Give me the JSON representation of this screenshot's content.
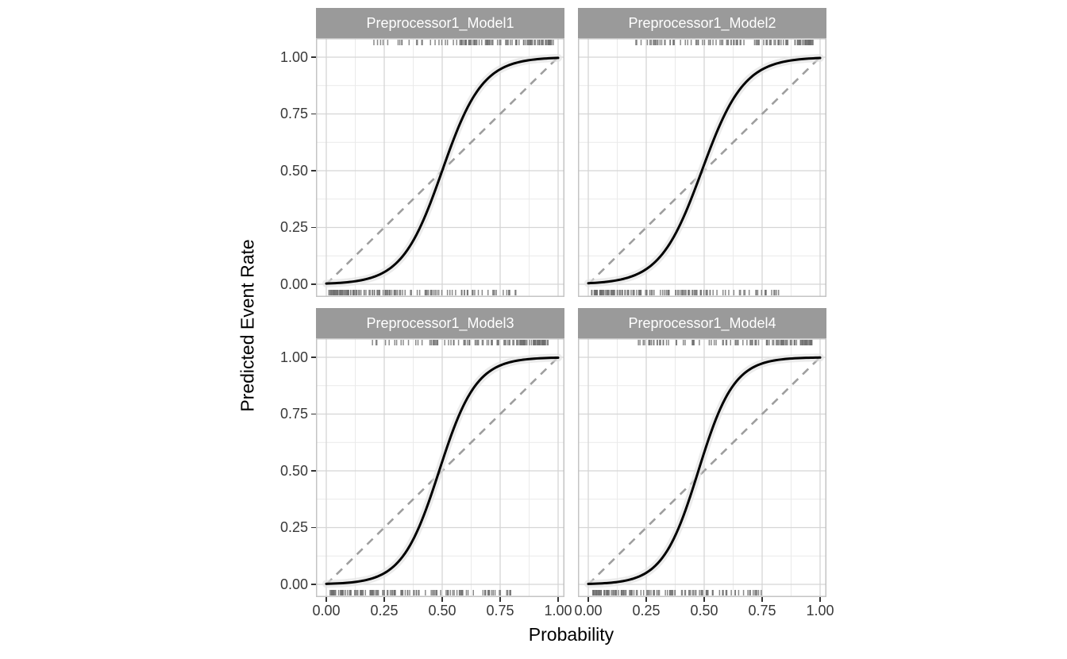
{
  "figure": {
    "kind": "faceted calibration plot (ggplot2 style)",
    "panel_layout": "2x2"
  },
  "colors": {
    "background": "#ffffff",
    "strip_bg": "#9a9a9a",
    "strip_text": "#ffffff",
    "grid_major": "#d5d5d5",
    "grid_minor": "#eaeaea",
    "panel_border": "#c4c4c4",
    "curve": "#000000",
    "band": "#e2e2e2",
    "diagonal": "#9e9e9e",
    "rug": "#6e6e6e",
    "tick": "#333333",
    "tick_label": "#383838",
    "title": "#000000"
  },
  "chart_data": {
    "type": "line",
    "title": "",
    "xlabel": "Probability",
    "ylabel": "Predicted Event Rate",
    "xlim": [
      0,
      1
    ],
    "ylim": [
      0,
      1
    ],
    "x_tick_labels": [
      "0.00",
      "0.25",
      "0.50",
      "0.75",
      "1.00"
    ],
    "y_tick_labels": [
      "0.00",
      "0.25",
      "0.50",
      "0.75",
      "1.00"
    ],
    "grid": "major and minor gridlines, white panel background",
    "legend": "none",
    "facets": [
      {
        "label": "Preprocessor1_Model1",
        "curve_type": "logistic",
        "midpoint": 0.5,
        "steepness": 11.5,
        "curve_points": {
          "x": [
            0,
            0.1,
            0.2,
            0.3,
            0.4,
            0.5,
            0.6,
            0.7,
            0.8,
            0.9,
            1.0
          ],
          "y": [
            0.003,
            0.01,
            0.031,
            0.091,
            0.24,
            0.5,
            0.76,
            0.909,
            0.969,
            0.99,
            0.997
          ]
        },
        "reference_line": {
          "style": "dashed",
          "from": [
            0,
            0
          ],
          "to": [
            1,
            1
          ]
        },
        "rug_top": {
          "side": "top",
          "count": 115,
          "seed": 101,
          "range": [
            0.18,
            0.97
          ],
          "skew": "dense toward high probability"
        },
        "rug_bottom": {
          "side": "bottom",
          "count": 130,
          "seed": 102,
          "range": [
            0.02,
            0.83
          ],
          "skew": "dense toward low probability"
        }
      },
      {
        "label": "Preprocessor1_Model2",
        "curve_type": "logistic",
        "midpoint": 0.49,
        "steepness": 11.0,
        "curve_points": {
          "x": [
            0,
            0.1,
            0.2,
            0.3,
            0.4,
            0.5,
            0.6,
            0.7,
            0.8,
            0.9,
            1.0
          ],
          "y": [
            0.005,
            0.014,
            0.04,
            0.11,
            0.271,
            0.527,
            0.77,
            0.91,
            0.968,
            0.989,
            0.996
          ]
        },
        "reference_line": {
          "style": "dashed",
          "from": [
            0,
            0
          ],
          "to": [
            1,
            1
          ]
        },
        "rug_top": {
          "side": "top",
          "count": 110,
          "seed": 201,
          "range": [
            0.2,
            0.96
          ],
          "skew": "dense toward high probability"
        },
        "rug_bottom": {
          "side": "bottom",
          "count": 135,
          "seed": 202,
          "range": [
            0.02,
            0.82
          ],
          "skew": "dense toward low probability"
        }
      },
      {
        "label": "Preprocessor1_Model3",
        "curve_type": "logistic",
        "midpoint": 0.487,
        "steepness": 12.5,
        "curve_points": {
          "x": [
            0,
            0.1,
            0.2,
            0.3,
            0.4,
            0.5,
            0.6,
            0.7,
            0.8,
            0.9,
            1.0
          ],
          "y": [
            0.002,
            0.008,
            0.027,
            0.088,
            0.252,
            0.541,
            0.804,
            0.935,
            0.98,
            0.994,
            0.998
          ]
        },
        "reference_line": {
          "style": "dashed",
          "from": [
            0,
            0
          ],
          "to": [
            1,
            1
          ]
        },
        "rug_top": {
          "side": "top",
          "count": 112,
          "seed": 301,
          "range": [
            0.19,
            0.95
          ],
          "skew": "dense toward high probability"
        },
        "rug_bottom": {
          "side": "bottom",
          "count": 128,
          "seed": 302,
          "range": [
            0.02,
            0.8
          ],
          "skew": "dense toward low probability"
        }
      },
      {
        "label": "Preprocessor1_Model4",
        "curve_type": "logistic",
        "midpoint": 0.475,
        "steepness": 13.0,
        "curve_points": {
          "x": [
            0,
            0.1,
            0.2,
            0.3,
            0.4,
            0.5,
            0.6,
            0.7,
            0.8,
            0.9,
            1.0
          ],
          "y": [
            0.002,
            0.008,
            0.027,
            0.093,
            0.274,
            0.581,
            0.836,
            0.949,
            0.986,
            0.996,
            0.999
          ]
        },
        "reference_line": {
          "style": "dashed",
          "from": [
            0,
            0
          ],
          "to": [
            1,
            1
          ]
        },
        "rug_top": {
          "side": "top",
          "count": 108,
          "seed": 401,
          "range": [
            0.17,
            0.96
          ],
          "skew": "dense toward high probability"
        },
        "rug_bottom": {
          "side": "bottom",
          "count": 125,
          "seed": 402,
          "range": [
            0.02,
            0.78
          ],
          "skew": "dense toward low probability"
        }
      }
    ]
  }
}
